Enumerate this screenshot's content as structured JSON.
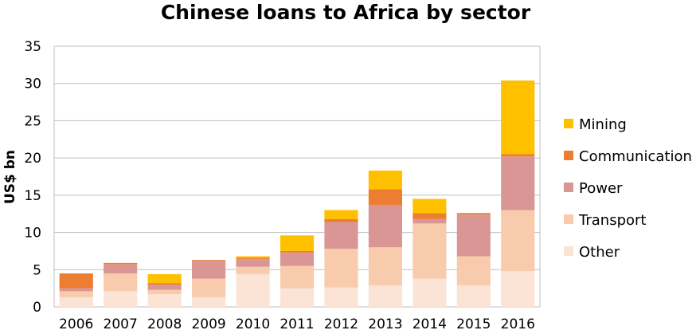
{
  "chart_data": {
    "type": "bar",
    "stacked": true,
    "title": "Chinese loans to Africa by sector",
    "xlabel": "",
    "ylabel": "US$ bn",
    "ylim": [
      0,
      35
    ],
    "yticks": [
      "0",
      "5",
      "10",
      "15",
      "20",
      "25",
      "30",
      "35"
    ],
    "grid": true,
    "legend_position": "right",
    "categories": [
      "2006",
      "2007",
      "2008",
      "2009",
      "2010",
      "2011",
      "2012",
      "2013",
      "2014",
      "2015",
      "2016"
    ],
    "series": [
      {
        "name": "Other",
        "color": "#FBE3D6",
        "values": [
          1.3,
          2.1,
          1.7,
          1.3,
          4.4,
          2.5,
          2.6,
          2.9,
          3.8,
          2.9,
          4.8
        ]
      },
      {
        "name": "Transport",
        "color": "#F8CBAD",
        "values": [
          0.8,
          2.4,
          0.6,
          2.5,
          1.0,
          3.0,
          5.2,
          5.1,
          7.4,
          3.9,
          8.2
        ]
      },
      {
        "name": "Power",
        "color": "#D99694",
        "values": [
          0.4,
          1.2,
          0.7,
          2.4,
          1.0,
          1.8,
          3.6,
          5.7,
          0.6,
          5.6,
          7.2
        ]
      },
      {
        "name": "Communication",
        "color": "#ED7D31",
        "values": [
          2.0,
          0.2,
          0.2,
          0.1,
          0.2,
          0.2,
          0.4,
          2.1,
          0.8,
          0.2,
          0.3
        ]
      },
      {
        "name": "Mining",
        "color": "#FFC000",
        "values": [
          0.0,
          0.0,
          1.2,
          0.0,
          0.2,
          2.1,
          1.2,
          2.5,
          1.9,
          0.0,
          9.9
        ]
      }
    ],
    "legend_order": [
      "Mining",
      "Communication",
      "Power",
      "Transport",
      "Other"
    ]
  }
}
